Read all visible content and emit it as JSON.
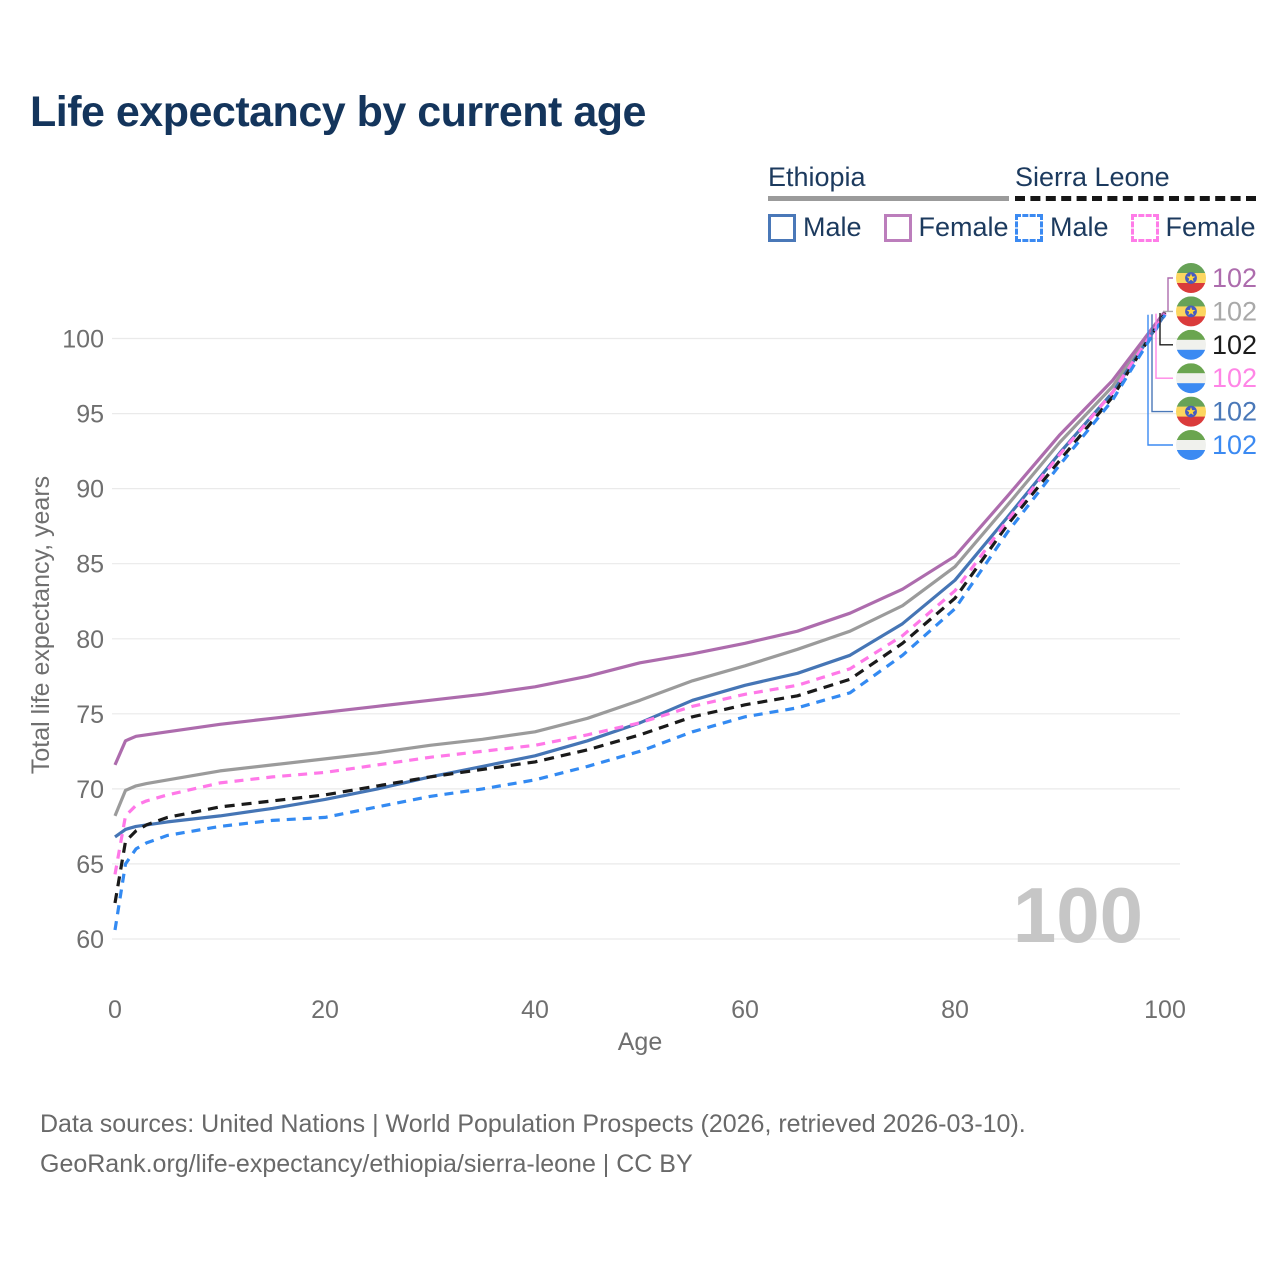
{
  "title": "Life expectancy by current age",
  "legend": {
    "groups": [
      {
        "name": "Ethiopia",
        "underline_style": "solid",
        "underline_color": "#9b9b9b",
        "items": [
          {
            "label": "Male",
            "color": "#4a78b8",
            "dashed": false
          },
          {
            "label": "Female",
            "color": "#bc7ebc",
            "dashed": false
          }
        ]
      },
      {
        "name": "Sierra Leone",
        "underline_style": "dashed",
        "underline_color": "#161616",
        "items": [
          {
            "label": "Male",
            "color": "#3b8af2",
            "dashed": true
          },
          {
            "label": "Female",
            "color": "#ff7ce8",
            "dashed": true
          }
        ]
      }
    ]
  },
  "watermark": "100",
  "chart_data": {
    "type": "line",
    "title": "Life expectancy by current age",
    "xlabel": "Age",
    "ylabel": "Total life expectancy, years",
    "xlim": [
      0,
      100
    ],
    "ylim": [
      60,
      102.5
    ],
    "x_ticks": [
      0,
      20,
      40,
      60,
      80,
      100
    ],
    "y_ticks": [
      60,
      65,
      70,
      75,
      80,
      85,
      90,
      95,
      100
    ],
    "grid": "horizontal",
    "gridline_color": "#eaeaea",
    "axis_text_color": "#6f6f6f",
    "series": [
      {
        "name": "Ethiopia — All",
        "country": "Ethiopia",
        "group": "all",
        "color": "#9b9b9b",
        "dashed": false,
        "points": [
          [
            0,
            68.2
          ],
          [
            1,
            69.9
          ],
          [
            2,
            70.2
          ],
          [
            3,
            70.35
          ],
          [
            5,
            70.6
          ],
          [
            10,
            71.2
          ],
          [
            15,
            71.6
          ],
          [
            20,
            72.0
          ],
          [
            25,
            72.4
          ],
          [
            30,
            72.9
          ],
          [
            35,
            73.3
          ],
          [
            40,
            73.8
          ],
          [
            45,
            74.7
          ],
          [
            50,
            75.9
          ],
          [
            55,
            77.2
          ],
          [
            60,
            78.2
          ],
          [
            65,
            79.3
          ],
          [
            70,
            80.5
          ],
          [
            75,
            82.2
          ],
          [
            80,
            84.8
          ],
          [
            85,
            88.9
          ],
          [
            90,
            93.1
          ],
          [
            95,
            96.8
          ],
          [
            100,
            101.75
          ]
        ]
      },
      {
        "name": "Ethiopia — Female",
        "country": "Ethiopia",
        "group": "female",
        "color": "#ad6cad",
        "dashed": false,
        "points": [
          [
            0,
            71.6
          ],
          [
            1,
            73.2
          ],
          [
            2,
            73.5
          ],
          [
            3,
            73.6
          ],
          [
            5,
            73.8
          ],
          [
            10,
            74.3
          ],
          [
            15,
            74.7
          ],
          [
            20,
            75.1
          ],
          [
            25,
            75.5
          ],
          [
            30,
            75.9
          ],
          [
            35,
            76.3
          ],
          [
            40,
            76.8
          ],
          [
            45,
            77.5
          ],
          [
            50,
            78.4
          ],
          [
            55,
            79.0
          ],
          [
            60,
            79.7
          ],
          [
            65,
            80.5
          ],
          [
            70,
            81.7
          ],
          [
            75,
            83.3
          ],
          [
            80,
            85.5
          ],
          [
            85,
            89.5
          ],
          [
            90,
            93.6
          ],
          [
            95,
            97.2
          ],
          [
            100,
            101.8
          ]
        ]
      },
      {
        "name": "Ethiopia — Male",
        "country": "Ethiopia",
        "group": "male",
        "color": "#4575b5",
        "dashed": false,
        "points": [
          [
            0,
            66.8
          ],
          [
            1,
            67.3
          ],
          [
            2,
            67.5
          ],
          [
            3,
            67.6
          ],
          [
            5,
            67.8
          ],
          [
            10,
            68.2
          ],
          [
            15,
            68.7
          ],
          [
            20,
            69.3
          ],
          [
            25,
            70.0
          ],
          [
            30,
            70.8
          ],
          [
            35,
            71.5
          ],
          [
            40,
            72.2
          ],
          [
            45,
            73.2
          ],
          [
            50,
            74.4
          ],
          [
            55,
            75.9
          ],
          [
            60,
            76.9
          ],
          [
            65,
            77.7
          ],
          [
            70,
            78.9
          ],
          [
            75,
            81.0
          ],
          [
            80,
            83.9
          ],
          [
            85,
            88.1
          ],
          [
            90,
            92.4
          ],
          [
            95,
            96.4
          ],
          [
            100,
            101.62
          ]
        ]
      },
      {
        "name": "Sierra Leone — All",
        "country": "Sierra Leone",
        "group": "all",
        "color": "#1a1a1a",
        "dashed": true,
        "points": [
          [
            0,
            62.4
          ],
          [
            1,
            66.5
          ],
          [
            2,
            67.2
          ],
          [
            3,
            67.6
          ],
          [
            5,
            68.1
          ],
          [
            10,
            68.8
          ],
          [
            15,
            69.2
          ],
          [
            20,
            69.6
          ],
          [
            25,
            70.2
          ],
          [
            30,
            70.8
          ],
          [
            35,
            71.3
          ],
          [
            40,
            71.8
          ],
          [
            45,
            72.6
          ],
          [
            50,
            73.6
          ],
          [
            55,
            74.8
          ],
          [
            60,
            75.6
          ],
          [
            65,
            76.2
          ],
          [
            70,
            77.3
          ],
          [
            75,
            79.7
          ],
          [
            80,
            82.7
          ],
          [
            85,
            87.6
          ],
          [
            90,
            91.9
          ],
          [
            95,
            96.1
          ],
          [
            100,
            101.7
          ]
        ]
      },
      {
        "name": "Sierra Leone — Female",
        "country": "Sierra Leone",
        "group": "female",
        "color": "#ff78e8",
        "dashed": true,
        "points": [
          [
            0,
            64.3
          ],
          [
            1,
            68.2
          ],
          [
            2,
            68.9
          ],
          [
            3,
            69.2
          ],
          [
            5,
            69.6
          ],
          [
            10,
            70.4
          ],
          [
            15,
            70.8
          ],
          [
            20,
            71.1
          ],
          [
            25,
            71.6
          ],
          [
            30,
            72.1
          ],
          [
            35,
            72.5
          ],
          [
            40,
            72.9
          ],
          [
            45,
            73.6
          ],
          [
            50,
            74.4
          ],
          [
            55,
            75.5
          ],
          [
            60,
            76.3
          ],
          [
            65,
            76.9
          ],
          [
            70,
            78.0
          ],
          [
            75,
            80.2
          ],
          [
            80,
            83.2
          ],
          [
            85,
            87.9
          ],
          [
            90,
            92.3
          ],
          [
            95,
            96.4
          ],
          [
            100,
            101.66
          ]
        ]
      },
      {
        "name": "Sierra Leone — Male",
        "country": "Sierra Leone",
        "group": "male",
        "color": "#338af2",
        "dashed": true,
        "points": [
          [
            0,
            60.6
          ],
          [
            1,
            65.0
          ],
          [
            2,
            66.0
          ],
          [
            3,
            66.4
          ],
          [
            5,
            66.9
          ],
          [
            10,
            67.5
          ],
          [
            15,
            67.9
          ],
          [
            20,
            68.1
          ],
          [
            25,
            68.8
          ],
          [
            30,
            69.5
          ],
          [
            35,
            70.0
          ],
          [
            40,
            70.6
          ],
          [
            45,
            71.5
          ],
          [
            50,
            72.5
          ],
          [
            55,
            73.8
          ],
          [
            60,
            74.8
          ],
          [
            65,
            75.4
          ],
          [
            70,
            76.4
          ],
          [
            75,
            78.9
          ],
          [
            80,
            82.0
          ],
          [
            85,
            87.1
          ],
          [
            90,
            91.6
          ],
          [
            95,
            95.9
          ],
          [
            100,
            101.58
          ]
        ]
      }
    ],
    "end_labels": [
      {
        "value": "102",
        "series_index": 1,
        "flag": "ethiopia",
        "color": "#ad6cad"
      },
      {
        "value": "102",
        "series_index": 0,
        "flag": "ethiopia",
        "color": "#a9a9a9"
      },
      {
        "value": "102",
        "series_index": 3,
        "flag": "sierra-leone",
        "color": "#1c1c1c"
      },
      {
        "value": "102",
        "series_index": 4,
        "flag": "sierra-leone",
        "color": "#ff85e6"
      },
      {
        "value": "102",
        "series_index": 2,
        "flag": "ethiopia",
        "color": "#4a78b8"
      },
      {
        "value": "102",
        "series_index": 5,
        "flag": "sierra-leone",
        "color": "#3b8af2"
      }
    ],
    "flag_colors": {
      "ethiopia": {
        "bands": [
          "#67a257",
          "#fcd660",
          "#da3b3b"
        ],
        "emblem_circle": "#465cc0",
        "emblem_star": "#ffd83d"
      },
      "sierra-leone": {
        "bands": [
          "#6aa54f",
          "#f0f1ed",
          "#3b8af2"
        ]
      }
    }
  },
  "footer": {
    "line1": "Data sources: United Nations | World Population Prospects (2026, retrieved 2026-03-10).",
    "line2": "GeoRank.org/life-expectancy/ethiopia/sierra-leone | CC BY"
  }
}
